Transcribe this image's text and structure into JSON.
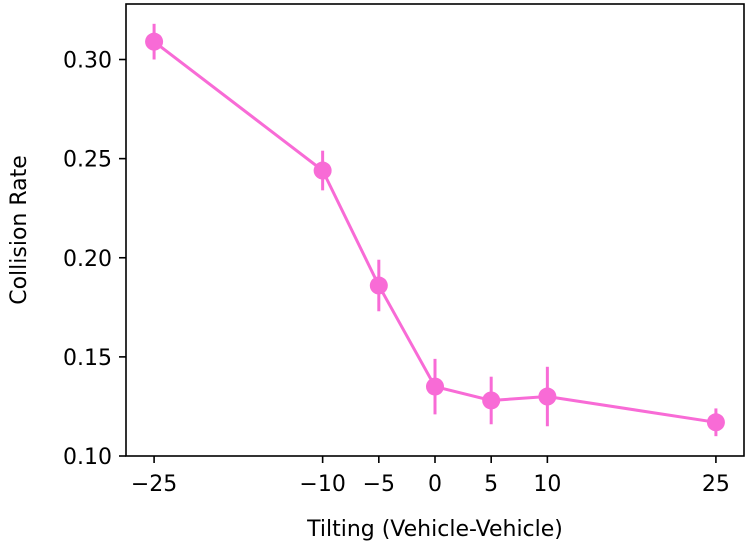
{
  "chart_data": {
    "type": "line",
    "title": "",
    "xlabel": "Tilting (Vehicle-Vehicle)",
    "ylabel": "Collision Rate",
    "xlim": [
      -27.5,
      27.5
    ],
    "ylim": [
      0.1,
      0.328
    ],
    "x_ticks": [
      -25,
      -10,
      -5,
      0,
      5,
      10,
      25
    ],
    "x_tick_labels": [
      "−25",
      "−10",
      "−5",
      "0",
      "5",
      "10",
      "25"
    ],
    "y_ticks": [
      0.1,
      0.15,
      0.2,
      0.25,
      0.3
    ],
    "y_tick_labels": [
      "0.10",
      "0.15",
      "0.20",
      "0.25",
      "0.30"
    ],
    "grid": false,
    "series": [
      {
        "color": "#f86bd6",
        "x": [
          -25,
          -10,
          -5,
          0,
          5,
          10,
          25
        ],
        "y": [
          0.309,
          0.244,
          0.186,
          0.135,
          0.128,
          0.13,
          0.117
        ],
        "err": [
          0.009,
          0.01,
          0.013,
          0.014,
          0.012,
          0.015,
          0.007
        ]
      }
    ]
  }
}
